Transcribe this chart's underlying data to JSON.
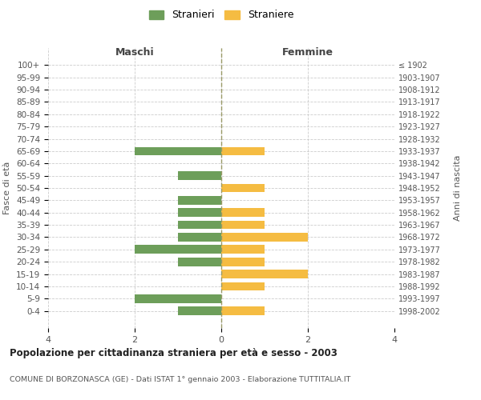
{
  "age_groups": [
    "100+",
    "95-99",
    "90-94",
    "85-89",
    "80-84",
    "75-79",
    "70-74",
    "65-69",
    "60-64",
    "55-59",
    "50-54",
    "45-49",
    "40-44",
    "35-39",
    "30-34",
    "25-29",
    "20-24",
    "15-19",
    "10-14",
    "5-9",
    "0-4"
  ],
  "birth_years": [
    "≤ 1902",
    "1903-1907",
    "1908-1912",
    "1913-1917",
    "1918-1922",
    "1923-1927",
    "1928-1932",
    "1933-1937",
    "1938-1942",
    "1943-1947",
    "1948-1952",
    "1953-1957",
    "1958-1962",
    "1963-1967",
    "1968-1972",
    "1973-1977",
    "1978-1982",
    "1983-1987",
    "1988-1992",
    "1993-1997",
    "1998-2002"
  ],
  "males": [
    0,
    0,
    0,
    0,
    0,
    0,
    0,
    -2,
    0,
    -1,
    0,
    -1,
    -1,
    -1,
    -1,
    -2,
    -1,
    0,
    0,
    -2,
    -1
  ],
  "females": [
    0,
    0,
    0,
    0,
    0,
    0,
    0,
    1,
    0,
    0,
    1,
    0,
    1,
    1,
    2,
    1,
    1,
    2,
    1,
    0,
    1
  ],
  "male_color": "#6d9e5a",
  "female_color": "#f5bc42",
  "title_main": "Popolazione per cittadinanza straniera per età e sesso - 2003",
  "title_sub": "COMUNE DI BORZONASCA (GE) - Dati ISTAT 1° gennaio 2003 - Elaborazione TUTTITALIA.IT",
  "legend_male": "Stranieri",
  "legend_female": "Straniere",
  "xlabel_left": "Maschi",
  "xlabel_right": "Femmine",
  "ylabel_left": "Fasce di età",
  "ylabel_right": "Anni di nascita",
  "xlim": 4,
  "bg_color": "#ffffff",
  "grid_color": "#cccccc",
  "bar_height": 0.7
}
